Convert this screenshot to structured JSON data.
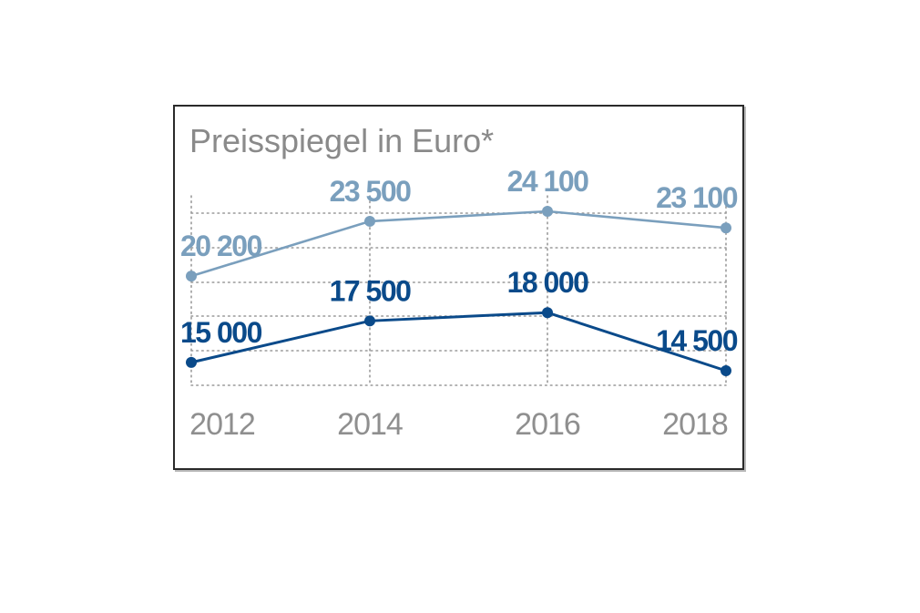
{
  "chart_data": {
    "type": "line",
    "title": "Preisspiegel in Euro*",
    "x": [
      "2012",
      "2014",
      "2016",
      "2018"
    ],
    "series": [
      {
        "values": [
          20200,
          23500,
          24100,
          23100
        ],
        "labels": [
          "20 200",
          "23 500",
          "24 100",
          "23 100"
        ],
        "color": "#7a9fbd"
      },
      {
        "values": [
          15000,
          17500,
          18000,
          14500
        ],
        "labels": [
          "15 000",
          "17 500",
          "18 000",
          "14 500"
        ],
        "color": "#0a4a8a"
      }
    ],
    "grid": true,
    "grid_style": "dotted"
  }
}
